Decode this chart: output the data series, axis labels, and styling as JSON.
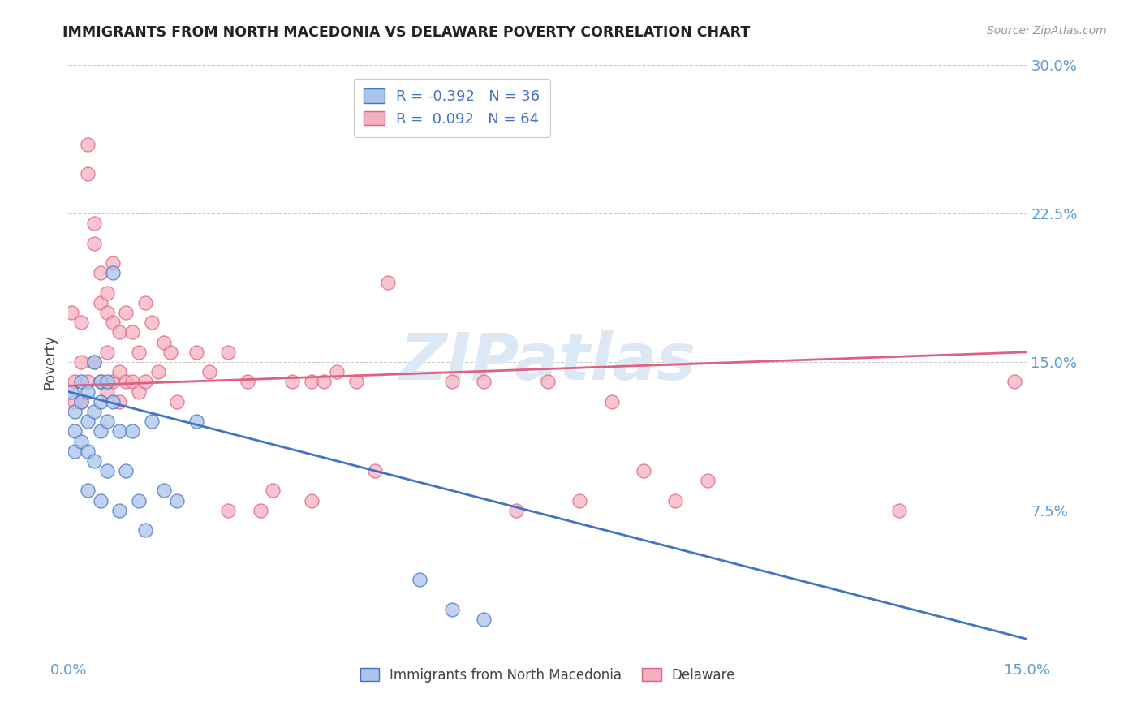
{
  "title": "IMMIGRANTS FROM NORTH MACEDONIA VS DELAWARE POVERTY CORRELATION CHART",
  "source": "Source: ZipAtlas.com",
  "ylabel": "Poverty",
  "xlabel_blue": "Immigrants from North Macedonia",
  "xlabel_pink": "Delaware",
  "xlim": [
    0.0,
    0.15
  ],
  "ylim": [
    0.0,
    0.3
  ],
  "blue_R": -0.392,
  "blue_N": 36,
  "pink_R": 0.092,
  "pink_N": 64,
  "blue_color": "#aac4ea",
  "pink_color": "#f5b0c0",
  "blue_line_color": "#4472c4",
  "pink_line_color": "#e06080",
  "watermark": "ZIPatlas",
  "watermark_color": "#dce8f4",
  "blue_scatter_x": [
    0.0005,
    0.001,
    0.001,
    0.001,
    0.002,
    0.002,
    0.002,
    0.003,
    0.003,
    0.003,
    0.003,
    0.004,
    0.004,
    0.004,
    0.005,
    0.005,
    0.005,
    0.005,
    0.006,
    0.006,
    0.006,
    0.007,
    0.007,
    0.008,
    0.008,
    0.009,
    0.01,
    0.011,
    0.012,
    0.013,
    0.015,
    0.017,
    0.02,
    0.055,
    0.06,
    0.065
  ],
  "blue_scatter_y": [
    0.135,
    0.125,
    0.115,
    0.105,
    0.14,
    0.13,
    0.11,
    0.135,
    0.12,
    0.105,
    0.085,
    0.15,
    0.125,
    0.1,
    0.14,
    0.13,
    0.115,
    0.08,
    0.14,
    0.12,
    0.095,
    0.195,
    0.13,
    0.115,
    0.075,
    0.095,
    0.115,
    0.08,
    0.065,
    0.12,
    0.085,
    0.08,
    0.12,
    0.04,
    0.025,
    0.02
  ],
  "pink_scatter_x": [
    0.0005,
    0.001,
    0.001,
    0.002,
    0.002,
    0.002,
    0.003,
    0.003,
    0.003,
    0.004,
    0.004,
    0.004,
    0.005,
    0.005,
    0.005,
    0.006,
    0.006,
    0.006,
    0.006,
    0.007,
    0.007,
    0.007,
    0.008,
    0.008,
    0.008,
    0.009,
    0.009,
    0.01,
    0.01,
    0.011,
    0.011,
    0.012,
    0.012,
    0.013,
    0.014,
    0.015,
    0.016,
    0.017,
    0.02,
    0.022,
    0.025,
    0.025,
    0.028,
    0.03,
    0.032,
    0.035,
    0.038,
    0.038,
    0.04,
    0.042,
    0.045,
    0.048,
    0.05,
    0.06,
    0.065,
    0.07,
    0.075,
    0.08,
    0.085,
    0.09,
    0.095,
    0.1,
    0.13,
    0.148
  ],
  "pink_scatter_y": [
    0.175,
    0.14,
    0.13,
    0.17,
    0.15,
    0.13,
    0.26,
    0.245,
    0.14,
    0.22,
    0.21,
    0.15,
    0.195,
    0.18,
    0.14,
    0.185,
    0.175,
    0.155,
    0.135,
    0.2,
    0.17,
    0.14,
    0.165,
    0.145,
    0.13,
    0.175,
    0.14,
    0.165,
    0.14,
    0.155,
    0.135,
    0.18,
    0.14,
    0.17,
    0.145,
    0.16,
    0.155,
    0.13,
    0.155,
    0.145,
    0.155,
    0.075,
    0.14,
    0.075,
    0.085,
    0.14,
    0.14,
    0.08,
    0.14,
    0.145,
    0.14,
    0.095,
    0.19,
    0.14,
    0.14,
    0.075,
    0.14,
    0.08,
    0.13,
    0.095,
    0.08,
    0.09,
    0.075,
    0.14
  ],
  "background_color": "#ffffff",
  "grid_color": "#cccccc",
  "tick_label_color": "#5b9bd5",
  "blue_trend_x": [
    0.0,
    0.15
  ],
  "blue_trend_y": [
    0.135,
    0.01
  ],
  "pink_trend_x": [
    0.0,
    0.15
  ],
  "pink_trend_y": [
    0.138,
    0.155
  ]
}
